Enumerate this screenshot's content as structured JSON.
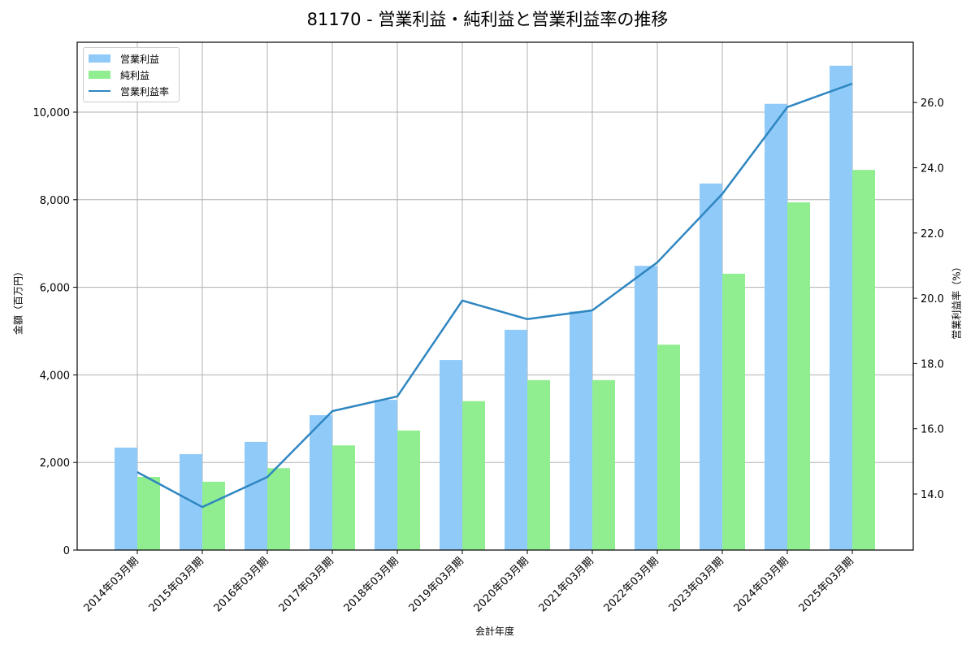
{
  "chart_data": {
    "type": "bar",
    "title": "81170 - 営業利益・純利益と営業利益率の推移",
    "xlabel": "会計年度",
    "ylabel": "金額（百万円）",
    "ylabel_right": "営業利益率（%）",
    "categories": [
      "2014年03月期",
      "2015年03月期",
      "2016年03月期",
      "2017年03月期",
      "2018年03月期",
      "2019年03月期",
      "2020年03月期",
      "2021年03月期",
      "2022年03月期",
      "2023年03月期",
      "2024年03月期",
      "2025年03月期"
    ],
    "series": [
      {
        "name": "営業利益",
        "type": "bar",
        "axis": "left",
        "color": "#90caf9",
        "values": [
          2340,
          2190,
          2470,
          3080,
          3430,
          4340,
          5030,
          5450,
          6490,
          8370,
          10190,
          11060
        ]
      },
      {
        "name": "純利益",
        "type": "bar",
        "axis": "left",
        "color": "#90ee90",
        "values": [
          1670,
          1560,
          1870,
          2390,
          2730,
          3400,
          3880,
          3880,
          4690,
          6310,
          7940,
          8680
        ]
      },
      {
        "name": "営業利益率",
        "type": "line",
        "axis": "right",
        "color": "#2e86c1",
        "values": [
          14.67,
          13.6,
          14.52,
          16.54,
          16.99,
          19.93,
          19.36,
          19.63,
          21.1,
          23.2,
          25.86,
          26.58
        ]
      }
    ],
    "ylim": [
      0,
      11600
    ],
    "ylim_right": [
      12.4,
      27.8
    ],
    "yticks": [
      0,
      2000,
      4000,
      6000,
      8000,
      10000
    ],
    "ytick_labels": [
      "0",
      "2,000",
      "4,000",
      "6,000",
      "8,000",
      "10,000"
    ],
    "yticks_right": [
      14.0,
      16.0,
      18.0,
      20.0,
      22.0,
      24.0,
      26.0
    ],
    "ytick_labels_right": [
      "14.0",
      "16.0",
      "18.0",
      "20.0",
      "22.0",
      "24.0",
      "26.0"
    ],
    "grid": true,
    "legend_position": "upper left"
  },
  "legend": {
    "items": [
      {
        "label": "営業利益",
        "color": "#90caf9"
      },
      {
        "label": "純利益",
        "color": "#90ee90"
      },
      {
        "label": "営業利益率",
        "color": "#2e86c1"
      }
    ]
  }
}
